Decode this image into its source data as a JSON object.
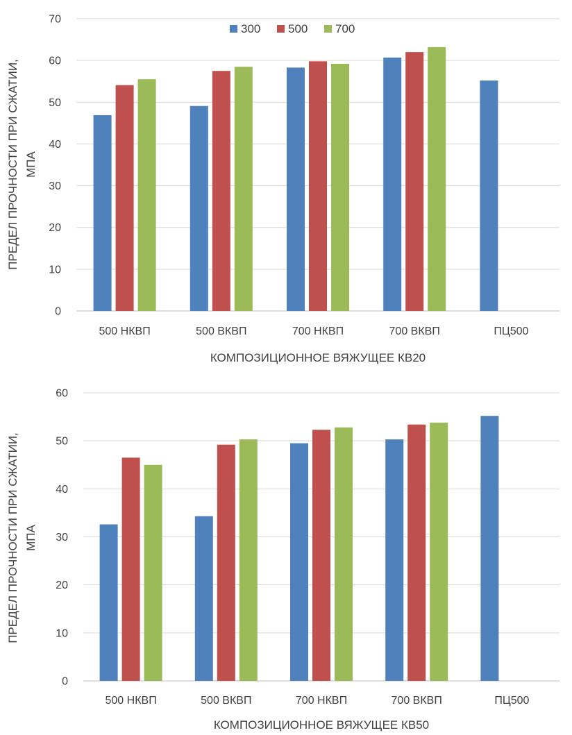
{
  "chart_data": [
    {
      "type": "bar",
      "title": "",
      "xlabel": "КОМПОЗИЦИОННОЕ ВЯЖУЩЕЕ КВ20",
      "ylabel_lines": [
        "ПРЕДЕЛ ПРОЧНОСТИ ПРИ СЖАТИИ,",
        "МПА"
      ],
      "categories": [
        "500 НКВП",
        "500 ВКВП",
        "700 НКВП",
        "700 ВКВП",
        "ПЦ500"
      ],
      "ylim": [
        0,
        70
      ],
      "yticks": [
        0,
        10,
        20,
        30,
        40,
        50,
        60,
        70
      ],
      "grid": true,
      "legend": "top-center",
      "series": [
        {
          "name": "300",
          "color": "#4f81bd",
          "values": [
            46.9,
            49.1,
            58.3,
            60.7,
            55.2
          ]
        },
        {
          "name": "500",
          "color": "#c0504d",
          "values": [
            54.1,
            57.5,
            59.8,
            62.0,
            null
          ]
        },
        {
          "name": "700",
          "color": "#9bbb59",
          "values": [
            55.5,
            58.5,
            59.2,
            63.2,
            null
          ]
        }
      ]
    },
    {
      "type": "bar",
      "title": "",
      "xlabel": "КОМПОЗИЦИОННОЕ ВЯЖУЩЕЕ КВ50",
      "ylabel_lines": [
        "ПРЕДЕЛ ПРОЧНОСТИ ПРИ СЖАТИИ,",
        "МПА"
      ],
      "categories": [
        "500 НКВП",
        "500 ВКВП",
        "700 НКВП",
        "700 ВКВП",
        "ПЦ500"
      ],
      "ylim": [
        0,
        60
      ],
      "yticks": [
        0,
        10,
        20,
        30,
        40,
        50,
        60
      ],
      "grid": true,
      "legend": "none",
      "series": [
        {
          "name": "300",
          "color": "#4f81bd",
          "values": [
            32.6,
            34.3,
            49.5,
            50.3,
            55.2
          ]
        },
        {
          "name": "500",
          "color": "#c0504d",
          "values": [
            46.5,
            49.2,
            52.3,
            53.4,
            null
          ]
        },
        {
          "name": "700",
          "color": "#9bbb59",
          "values": [
            45.0,
            50.3,
            52.8,
            53.8,
            null
          ]
        }
      ]
    }
  ]
}
